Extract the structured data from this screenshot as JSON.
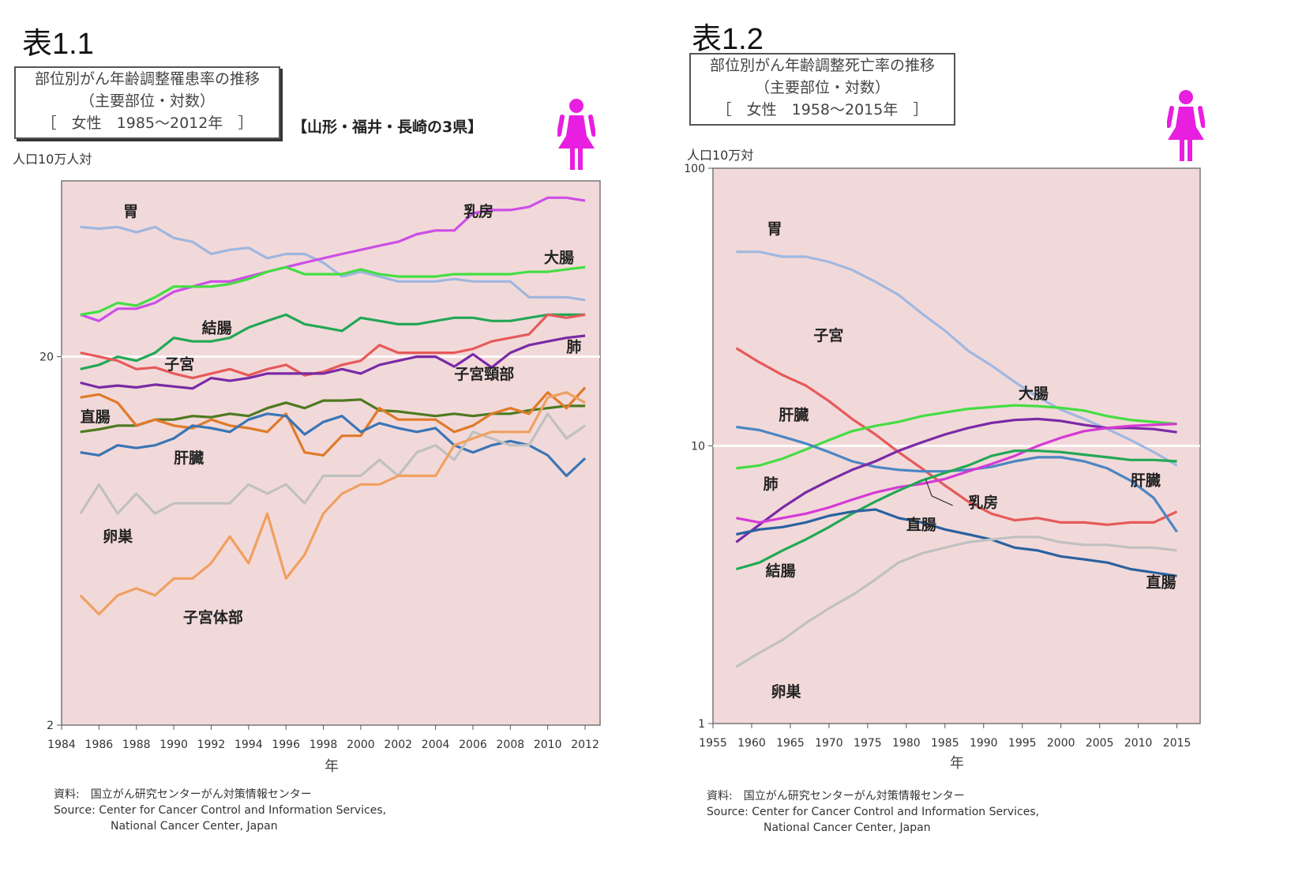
{
  "panels": [
    {
      "label": "表1.1",
      "title_lines": [
        "部位別がん年齢調整罹患率の推移",
        "（主要部位・対数）",
        "［　女性　1985～2012年　］"
      ],
      "region_note": "【山形・福井・長崎の3県】",
      "unit": "人口10万人対",
      "xlabel": "年",
      "source_lines": [
        "資料:　国立がん研究センターがん対策情報センター",
        "Source: Center for Cancer Control and Information Services,",
        "National Cancer Center, Japan"
      ]
    },
    {
      "label": "表1.2",
      "title_lines": [
        "部位別がん年齢調整死亡率の推移",
        "（主要部位・対数）",
        "［　女性　1958～2015年　］"
      ],
      "unit": "人口10万対",
      "xlabel": "年",
      "source_lines": [
        "資料:　国立がん研究センターがん対策情報センター",
        "Source: Center for Cancer Control and Information Services,",
        "National Cancer Center, Japan"
      ]
    }
  ],
  "chart_data": [
    {
      "type": "line",
      "title": "部位別がん年齢調整罹患率の推移",
      "xlabel": "年",
      "ylabel": "人口10万人対",
      "yscale": "log",
      "xlim": [
        1984,
        2012.8
      ],
      "ylim": [
        2,
        60
      ],
      "x_ticks": [
        1984,
        1986,
        1988,
        1990,
        1992,
        1994,
        1996,
        1998,
        2000,
        2002,
        2004,
        2006,
        2008,
        2010,
        2012
      ],
      "y_ticks": [
        2,
        20
      ],
      "y_tick_labels": [
        "2",
        "20"
      ],
      "grid": "horizontal line at 20",
      "background": "#f2d9d9",
      "x": [
        1985,
        1986,
        1987,
        1988,
        1989,
        1990,
        1991,
        1992,
        1993,
        1994,
        1995,
        1996,
        1997,
        1998,
        1999,
        2000,
        2001,
        2002,
        2003,
        2004,
        2005,
        2006,
        2007,
        2008,
        2009,
        2010,
        2011,
        2012
      ],
      "series": [
        {
          "name": "胃",
          "color": "#9fb6df",
          "values": [
            45,
            44.5,
            45,
            43.5,
            45,
            42,
            41,
            38,
            39,
            39.5,
            37,
            38,
            38,
            36,
            33,
            34,
            33,
            32,
            32,
            32,
            32.5,
            32,
            32,
            32,
            29,
            29,
            29,
            28.5
          ]
        },
        {
          "name": "乳房",
          "color": "#cc4fe6",
          "values": [
            26,
            25,
            27,
            27,
            28,
            30,
            31,
            32,
            32,
            33,
            34,
            35,
            36,
            37,
            38,
            39,
            40,
            41,
            43,
            44,
            44,
            49,
            50,
            50,
            51,
            54,
            54,
            53
          ]
        },
        {
          "name": "大腸",
          "color": "#44dd44",
          "values": [
            26,
            26.5,
            28,
            27.5,
            29,
            31,
            31,
            31,
            31.5,
            32.5,
            34,
            35,
            33.5,
            33.5,
            33.5,
            34.5,
            33.5,
            33,
            33,
            33,
            33.5,
            33.5,
            33.5,
            33.5,
            34,
            34,
            34.5,
            35
          ]
        },
        {
          "name": "結腸",
          "color": "#22a855",
          "values": [
            18.5,
            19,
            20,
            19.5,
            20.5,
            22.5,
            22,
            22,
            22.5,
            24,
            25,
            26,
            24.5,
            24,
            23.5,
            25.5,
            25,
            24.5,
            24.5,
            25,
            25.5,
            25.5,
            25,
            25,
            25.5,
            26,
            26,
            26
          ]
        },
        {
          "name": "子宮",
          "color": "#e65a5a",
          "values": [
            20.5,
            20,
            19.5,
            18.5,
            18.7,
            18,
            17.5,
            18,
            18.5,
            17.8,
            18.5,
            19,
            17.8,
            18.2,
            19,
            19.5,
            21.5,
            20.5,
            20.5,
            20.5,
            20.5,
            21,
            22,
            22.5,
            23,
            26,
            25.5,
            26
          ]
        },
        {
          "name": "肺",
          "color": "#7a2aa6",
          "values": [
            17,
            16.5,
            16.7,
            16.5,
            16.8,
            16.6,
            16.4,
            17.5,
            17.2,
            17.5,
            18,
            18,
            18,
            18,
            18.5,
            18,
            19,
            19.5,
            20,
            20,
            18.8,
            20.3,
            18.7,
            20.5,
            21.5,
            22,
            22.5,
            22.8
          ]
        },
        {
          "name": "直腸",
          "color": "#4d7a1f",
          "values": [
            12.5,
            12.7,
            13,
            13,
            13.5,
            13.5,
            13.8,
            13.7,
            14,
            13.8,
            14.5,
            15,
            14.5,
            15.2,
            15.2,
            15.3,
            14.3,
            14.2,
            14,
            13.8,
            14,
            13.8,
            14,
            14,
            14.3,
            14.5,
            14.7,
            14.7
          ]
        },
        {
          "name": "子宮頸部",
          "color": "#e07a2a",
          "values": [
            15.5,
            15.8,
            15,
            13,
            13.5,
            13,
            12.8,
            13.5,
            13,
            12.8,
            12.5,
            14,
            11,
            10.8,
            12.2,
            12.2,
            14.5,
            13.5,
            13.5,
            13.5,
            12.5,
            13,
            14,
            14.5,
            14,
            16,
            14.5,
            16.5
          ]
        },
        {
          "name": "肝臓",
          "color": "#3a75b5",
          "values": [
            11,
            10.8,
            11.5,
            11.3,
            11.5,
            12,
            13,
            12.8,
            12.5,
            13.5,
            14,
            13.8,
            12.3,
            13.3,
            13.8,
            12.5,
            13.2,
            12.8,
            12.5,
            12.8,
            11.5,
            11,
            11.5,
            11.8,
            11.5,
            10.8,
            9.5,
            10.6
          ]
        },
        {
          "name": "卵巣",
          "color": "#c0c0c0",
          "values": [
            7.5,
            9,
            7.5,
            8.5,
            7.5,
            8,
            8,
            8,
            8,
            9,
            8.5,
            9,
            8,
            9.5,
            9.5,
            9.5,
            10.5,
            9.5,
            11,
            11.5,
            10.5,
            12.5,
            12,
            11.5,
            11.5,
            14,
            12,
            13
          ]
        },
        {
          "name": "子宮体部",
          "color": "#f0a060",
          "values": [
            4.5,
            4,
            4.5,
            4.7,
            4.5,
            5,
            5,
            5.5,
            6.5,
            5.5,
            7.5,
            5,
            5.8,
            7.5,
            8.5,
            9,
            9,
            9.5,
            9.5,
            9.5,
            11.5,
            12,
            12.5,
            12.5,
            12.5,
            15.5,
            16,
            15
          ]
        }
      ]
    },
    {
      "type": "line",
      "title": "部位別がん年齢調整死亡率の推移",
      "xlabel": "年",
      "ylabel": "人口10万対",
      "yscale": "log",
      "xlim": [
        1955,
        2018
      ],
      "ylim": [
        1,
        100
      ],
      "x_ticks": [
        1955,
        1960,
        1965,
        1970,
        1975,
        1980,
        1985,
        1990,
        1995,
        2000,
        2005,
        2010,
        2015
      ],
      "y_ticks": [
        1,
        10,
        100
      ],
      "y_tick_labels": [
        "1",
        "10",
        "100"
      ],
      "grid": "horizontal line at 10",
      "background": "#f2d9d9",
      "x": [
        1958,
        1961,
        1964,
        1967,
        1970,
        1973,
        1976,
        1979,
        1982,
        1985,
        1988,
        1991,
        1994,
        1997,
        2000,
        2003,
        2006,
        2009,
        2012,
        2015
      ],
      "series": [
        {
          "name": "胃",
          "color": "#a0b8e0",
          "values": [
            50,
            50,
            48,
            48,
            46,
            43,
            39,
            35,
            30,
            26,
            22,
            19.5,
            17,
            15,
            13.5,
            12.5,
            11.5,
            10.5,
            9.5,
            8.5
          ]
        },
        {
          "name": "子宮",
          "color": "#e65a5a",
          "values": [
            22.5,
            20,
            18,
            16.5,
            14.5,
            12.5,
            11,
            9.5,
            8.3,
            7.2,
            6.3,
            5.7,
            5.4,
            5.5,
            5.3,
            5.3,
            5.2,
            5.3,
            5.3,
            5.8
          ]
        },
        {
          "name": "大腸",
          "color": "#44dd44",
          "values": [
            8.3,
            8.5,
            9,
            9.7,
            10.5,
            11.3,
            11.8,
            12.2,
            12.8,
            13.2,
            13.6,
            13.8,
            14,
            13.9,
            13.7,
            13.4,
            12.8,
            12.4,
            12.2,
            12
          ]
        },
        {
          "name": "肝臓",
          "color": "#4a86c4",
          "values": [
            11.7,
            11.4,
            10.8,
            10.2,
            9.5,
            8.8,
            8.4,
            8.2,
            8.1,
            8.1,
            8.2,
            8.4,
            8.8,
            9.1,
            9.1,
            8.8,
            8.3,
            7.5,
            6.5,
            4.9
          ]
        },
        {
          "name": "肺",
          "color": "#7a2aa6",
          "values": [
            4.5,
            5.2,
            6,
            6.8,
            7.5,
            8.2,
            8.8,
            9.6,
            10.3,
            11,
            11.6,
            12.1,
            12.4,
            12.5,
            12.3,
            11.9,
            11.6,
            11.6,
            11.5,
            11.2
          ]
        },
        {
          "name": "乳房",
          "color": "#d43ad4",
          "values": [
            5.5,
            5.3,
            5.5,
            5.7,
            6,
            6.4,
            6.8,
            7.1,
            7.3,
            7.6,
            8.1,
            8.6,
            9.2,
            10,
            10.7,
            11.3,
            11.6,
            11.8,
            11.9,
            12
          ]
        },
        {
          "name": "結腸",
          "color": "#22a855",
          "values": [
            3.6,
            3.8,
            4.2,
            4.6,
            5.1,
            5.7,
            6.3,
            6.9,
            7.5,
            8,
            8.5,
            9.2,
            9.6,
            9.6,
            9.5,
            9.3,
            9.1,
            8.9,
            8.9,
            8.8
          ]
        },
        {
          "name": "直腸",
          "color": "#2a62a0",
          "values": [
            4.8,
            5,
            5.1,
            5.3,
            5.6,
            5.8,
            5.9,
            5.5,
            5.3,
            5,
            4.8,
            4.6,
            4.3,
            4.2,
            4,
            3.9,
            3.8,
            3.6,
            3.5,
            3.4
          ]
        },
        {
          "name": "卵巣",
          "color": "#c0c0c0",
          "values": [
            1.6,
            1.8,
            2,
            2.3,
            2.6,
            2.9,
            3.3,
            3.8,
            4.1,
            4.3,
            4.5,
            4.6,
            4.7,
            4.7,
            4.5,
            4.4,
            4.4,
            4.3,
            4.3,
            4.2
          ]
        }
      ]
    }
  ],
  "series_labels": [
    [
      {
        "text": "胃",
        "x": 1987.3,
        "y": 48
      },
      {
        "text": "乳房",
        "x": 2005.5,
        "y": 48
      },
      {
        "text": "大腸",
        "x": 2009.8,
        "y": 36
      },
      {
        "text": "結腸",
        "x": 1991.5,
        "y": 23.2
      },
      {
        "text": "子宮",
        "x": 1989.5,
        "y": 18.5
      },
      {
        "text": "肺",
        "x": 2011,
        "y": 20.6
      },
      {
        "text": "子宮頸部",
        "x": 2005,
        "y": 17.4
      },
      {
        "text": "直腸",
        "x": 1985,
        "y": 13.3
      },
      {
        "text": "肝臓",
        "x": 1990,
        "y": 10.3
      },
      {
        "text": "卵巣",
        "x": 1986.2,
        "y": 6.3
      },
      {
        "text": "子宮体部",
        "x": 1990.5,
        "y": 3.8
      }
    ],
    [
      {
        "text": "胃",
        "x": 1962,
        "y": 58
      },
      {
        "text": "子宮",
        "x": 1968,
        "y": 24
      },
      {
        "text": "大腸",
        "x": 1994.5,
        "y": 14.8
      },
      {
        "text": "肝臓",
        "x": 1963.5,
        "y": 12.4
      },
      {
        "text": "肺",
        "x": 1961.5,
        "y": 7
      },
      {
        "text": "乳房",
        "x": 1988,
        "y": 6
      },
      {
        "text": "直腸",
        "x": 1980,
        "y": 5
      },
      {
        "text": "肝臓",
        "x": 2009,
        "y": 7.2
      },
      {
        "text": "結腸",
        "x": 1961.8,
        "y": 3.4
      },
      {
        "text": "直腸",
        "x": 2011,
        "y": 3.1
      },
      {
        "text": "卵巣",
        "x": 1962.5,
        "y": 1.25
      }
    ]
  ]
}
